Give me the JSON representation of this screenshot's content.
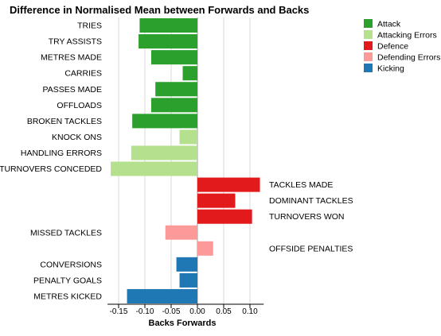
{
  "chart_data": {
    "type": "bar",
    "orientation": "horizontal",
    "title": "Difference in Normalised Mean between Forwards and Backs",
    "xlabel": "Backs Forwards",
    "ylabel": "",
    "xlim": [
      -0.165,
      0.12
    ],
    "xticks": [
      "-0.15",
      "-0.10",
      "-0.05",
      "0.00",
      "0.05",
      "0.10"
    ],
    "xtick_values": [
      -0.15,
      -0.1,
      -0.05,
      0.0,
      0.05,
      0.1
    ],
    "grid": true,
    "legend_position": "top-right",
    "groups": [
      {
        "name": "Attack",
        "color": "#2ca02c"
      },
      {
        "name": "Attacking Errors",
        "color": "#b5e08e"
      },
      {
        "name": "Defence",
        "color": "#e31a1c"
      },
      {
        "name": "Defending Errors",
        "color": "#fb9a99"
      },
      {
        "name": "Kicking",
        "color": "#1f78b4"
      }
    ],
    "bars": [
      {
        "category": "TRIES",
        "value": -0.11,
        "group": "Attack"
      },
      {
        "category": "TRY ASSISTS",
        "value": -0.112,
        "group": "Attack"
      },
      {
        "category": "METRES MADE",
        "value": -0.088,
        "group": "Attack"
      },
      {
        "category": "CARRIES",
        "value": -0.028,
        "group": "Attack"
      },
      {
        "category": "PASSES MADE",
        "value": -0.08,
        "group": "Attack"
      },
      {
        "category": "OFFLOADS",
        "value": -0.088,
        "group": "Attack"
      },
      {
        "category": "BROKEN TACKLES",
        "value": -0.124,
        "group": "Attack"
      },
      {
        "category": "KNOCK ONS",
        "value": -0.034,
        "group": "Attacking Errors"
      },
      {
        "category": "HANDLING ERRORS",
        "value": -0.126,
        "group": "Attacking Errors"
      },
      {
        "category": "TURNOVERS CONCEDED",
        "value": -0.165,
        "group": "Attacking Errors"
      },
      {
        "category": "TACKLES MADE",
        "value": 0.119,
        "group": "Defence"
      },
      {
        "category": "DOMINANT TACKLES",
        "value": 0.072,
        "group": "Defence"
      },
      {
        "category": "TURNOVERS WON",
        "value": 0.104,
        "group": "Defence"
      },
      {
        "category": "MISSED TACKLES",
        "value": -0.061,
        "group": "Defending Errors"
      },
      {
        "category": "OFFSIDE PENALTIES",
        "value": 0.03,
        "group": "Defending Errors"
      },
      {
        "category": "CONVERSIONS",
        "value": -0.04,
        "group": "Kicking"
      },
      {
        "category": "PENALTY GOALS",
        "value": -0.034,
        "group": "Kicking"
      },
      {
        "category": "METRES KICKED",
        "value": -0.134,
        "group": "Kicking"
      }
    ]
  }
}
